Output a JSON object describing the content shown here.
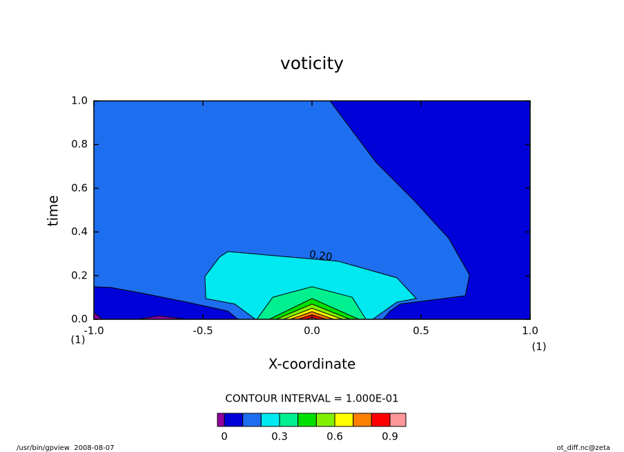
{
  "chart_data": {
    "type": "contour",
    "title": "voticity",
    "x_label": "X-coordinate",
    "y_label": "time",
    "x_unit": "(1)",
    "y_unit": "(1)",
    "xlim": [
      -1.0,
      1.0
    ],
    "ylim": [
      0.0,
      1.0
    ],
    "xticks": [
      {
        "value": -1.0,
        "label": "-1.0"
      },
      {
        "value": -0.5,
        "label": "-0.5"
      },
      {
        "value": 0,
        "label": "0.0"
      },
      {
        "value": 0.5,
        "label": "0.5"
      },
      {
        "value": 1.0,
        "label": "1.0"
      }
    ],
    "yticks": [
      {
        "value": 0,
        "label": "0.0"
      },
      {
        "value": 0.2,
        "label": "0.2"
      },
      {
        "value": 0.4,
        "label": "0.4"
      },
      {
        "value": 0.6,
        "label": "0.6"
      },
      {
        "value": 0.8,
        "label": "0.8"
      },
      {
        "value": 1.0,
        "label": "1.0"
      }
    ],
    "regions": [
      {
        "color": "#0000d8",
        "x": [
          -1,
          1,
          1,
          -1
        ],
        "y": [
          1,
          1,
          0,
          0
        ]
      },
      {
        "color": "#1e6ef0",
        "x": [
          -1,
          0.082,
          0.294,
          0.468,
          0.627,
          0.722,
          0.703,
          0.405,
          0.358,
          0.326,
          -0.339,
          -0.386,
          -0.576,
          -0.766,
          -0.924,
          -1
        ],
        "y": [
          1,
          1,
          0.718,
          0.544,
          0.37,
          0.203,
          0.108,
          0.07,
          0.038,
          0,
          0,
          0.038,
          0.079,
          0.117,
          0.146,
          0.149
        ]
      },
      {
        "color": "#00e8f0",
        "x": [
          -0.424,
          -0.386,
          0.12,
          0.389,
          0.478,
          0.389,
          0.278,
          -0.259,
          -0.354,
          -0.487,
          -0.491
        ],
        "y": [
          0.285,
          0.31,
          0.266,
          0.19,
          0.095,
          0.079,
          0,
          0,
          0.07,
          0.095,
          0.196
        ]
      },
      {
        "color": "#00f090",
        "x": [
          -0.253,
          -0.18,
          0,
          0.184,
          0.247
        ],
        "y": [
          0,
          0.101,
          0.149,
          0.101,
          0
        ]
      },
      {
        "color": "#00e000",
        "x": [
          -0.196,
          0,
          0.215
        ],
        "y": [
          0,
          0.095,
          0
        ]
      },
      {
        "color": "#80f000",
        "x": [
          -0.165,
          0,
          0.174
        ],
        "y": [
          0,
          0.07,
          0
        ]
      },
      {
        "color": "#ffff00",
        "x": [
          -0.13,
          0,
          0.14
        ],
        "y": [
          0,
          0.05,
          0
        ]
      },
      {
        "color": "#ff8000",
        "x": [
          -0.1,
          0,
          0.1
        ],
        "y": [
          0,
          0.035,
          0
        ]
      },
      {
        "color": "#ff0000",
        "x": [
          -0.065,
          0,
          0.065
        ],
        "y": [
          0,
          0.02,
          0
        ]
      },
      {
        "color": "#ff9898",
        "x": [
          -0.03,
          0,
          0.03
        ],
        "y": [
          0,
          0.008,
          0
        ]
      },
      {
        "color": "#9000a0",
        "x": [
          -1,
          -0.962,
          -1
        ],
        "y": [
          0.032,
          0,
          0
        ]
      },
      {
        "color": "#9000a0",
        "x": [
          -0.8,
          -0.7,
          -0.58
        ],
        "y": [
          0,
          0.016,
          0
        ]
      }
    ],
    "contour_label": {
      "text": "0.20",
      "x": 0.04,
      "y": 0.29
    },
    "contour_interval": "CONTOUR INTERVAL = 1.000E-01",
    "colorbar": {
      "levels": [
        0,
        0.1,
        0.2,
        0.3,
        0.4,
        0.5,
        0.6,
        0.7,
        0.8,
        0.9
      ],
      "colors": [
        "#9000a0",
        "#0000d8",
        "#1e6ef0",
        "#00e8f0",
        "#00f090",
        "#00e000",
        "#80f000",
        "#ffff00",
        "#ff8000",
        "#ff0000",
        "#ff9898"
      ],
      "ticks": [
        0,
        0.3,
        0.6,
        0.9
      ]
    },
    "footer_left": "/usr/bin/gpview  2008-08-07",
    "footer_right": "ot_diff.nc@zeta"
  }
}
